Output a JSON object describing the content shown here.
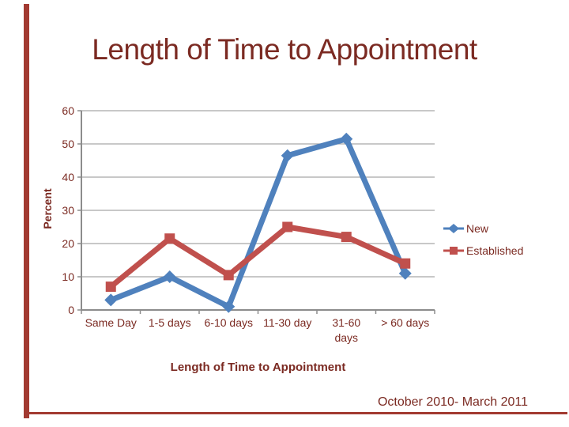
{
  "slide": {
    "title": "Length of Time to Appointment",
    "caption": "October 2010- March 2011",
    "colors": {
      "text": "#7B2A22",
      "border": "#A23A31",
      "background": "#FFFFFF"
    }
  },
  "chart_data": {
    "type": "line",
    "title": "",
    "xlabel": "Length of Time to Appointment",
    "ylabel": "Percent",
    "categories": [
      "Same Day",
      "1-5 days",
      "6-10 days",
      "11-30 day",
      "31-60 days",
      "> 60 days"
    ],
    "series": [
      {
        "name": "New",
        "color": "#4F81BD",
        "marker": "diamond",
        "values": [
          3,
          10,
          1,
          46.5,
          51.5,
          11
        ]
      },
      {
        "name": "Established",
        "color": "#C0504D",
        "marker": "square",
        "values": [
          7,
          21.5,
          10.5,
          25,
          22,
          14
        ]
      }
    ],
    "ylim": [
      0,
      60
    ],
    "yticks": [
      0,
      10,
      20,
      30,
      40,
      50,
      60
    ],
    "grid": true,
    "grid_color": "#A8A8A8",
    "axis_color": "#8C8C8C",
    "legend_position": "right"
  }
}
